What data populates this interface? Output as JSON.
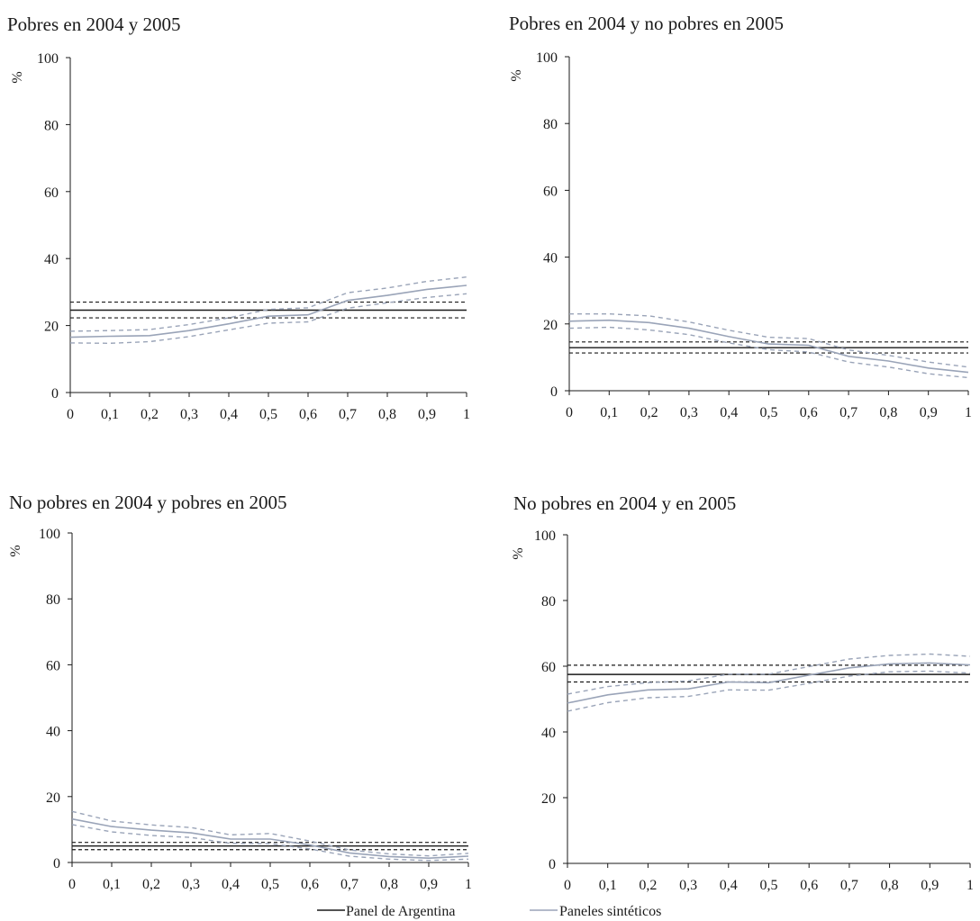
{
  "colors": {
    "panel_argentina": "#1a1a1a",
    "paneles_sinteticos": "#9aa4b8",
    "axis": "#1a1a1a"
  },
  "legend": {
    "panel_argentina": "Panel de Argentina",
    "paneles_sinteticos": "Paneles sintéticos"
  },
  "chart_data": [
    {
      "type": "line",
      "title": "Pobres en 2004 y 2005",
      "ylabel": "%",
      "ylim": [
        0,
        100
      ],
      "yticks": [
        "0",
        "20",
        "40",
        "60",
        "80",
        "100"
      ],
      "xticks": [
        "0",
        "0,1",
        "0,2",
        "0,3",
        "0,4",
        "0,5",
        "0,6",
        "0,7",
        "0,8",
        "0,9",
        "1"
      ],
      "x": [
        0,
        0.1,
        0.2,
        0.3,
        0.4,
        0.5,
        0.6,
        0.7,
        0.8,
        0.9,
        1
      ],
      "panel_argentina": {
        "value": 24.6,
        "lower": 22.3,
        "upper": 27.0
      },
      "series": [
        {
          "values": [
            16.5,
            16.8,
            17.0,
            18.5,
            20.5,
            22.8,
            23.2,
            27.5,
            29.0,
            30.8,
            32.0
          ]
        },
        {
          "values": [
            18.3,
            18.5,
            18.8,
            20.3,
            22.3,
            24.8,
            25.3,
            29.8,
            31.2,
            33.2,
            34.5
          ]
        },
        {
          "values": [
            14.8,
            14.7,
            15.2,
            16.7,
            18.7,
            20.7,
            21.1,
            25.2,
            26.8,
            28.4,
            29.5
          ]
        }
      ]
    },
    {
      "type": "line",
      "title": "Pobres en 2004 y no pobres en 2005",
      "ylabel": "%",
      "ylim": [
        0,
        100
      ],
      "yticks": [
        "0",
        "20",
        "40",
        "60",
        "80",
        "100"
      ],
      "xticks": [
        "0",
        "0,1",
        "0,2",
        "0,3",
        "0,4",
        "0,5",
        "0,6",
        "0,7",
        "0,8",
        "0,9",
        "1"
      ],
      "x": [
        0,
        0.1,
        0.2,
        0.3,
        0.4,
        0.5,
        0.6,
        0.7,
        0.8,
        0.9,
        1
      ],
      "panel_argentina": {
        "value": 12.9,
        "lower": 11.3,
        "upper": 14.6
      },
      "series": [
        {
          "values": [
            20.8,
            21.1,
            20.4,
            18.7,
            16.2,
            14.0,
            13.6,
            10.3,
            8.9,
            6.8,
            5.5
          ]
        },
        {
          "values": [
            23.0,
            23.0,
            22.4,
            20.6,
            18.1,
            16.0,
            15.6,
            12.2,
            10.6,
            8.6,
            7.1
          ]
        },
        {
          "values": [
            18.7,
            19.0,
            18.2,
            16.8,
            14.3,
            12.3,
            11.6,
            8.6,
            7.1,
            5.1,
            3.9
          ]
        }
      ]
    },
    {
      "type": "line",
      "title": "No pobres en 2004 y pobres en 2005",
      "ylabel": "%",
      "ylim": [
        0,
        100
      ],
      "yticks": [
        "0",
        "20",
        "40",
        "60",
        "80",
        "100"
      ],
      "xticks": [
        "0",
        "0,1",
        "0,2",
        "0,3",
        "0,4",
        "0,5",
        "0,6",
        "0,7",
        "0,8",
        "0,9",
        "1"
      ],
      "x": [
        0,
        0.1,
        0.2,
        0.3,
        0.4,
        0.5,
        0.6,
        0.7,
        0.8,
        0.9,
        1
      ],
      "panel_argentina": {
        "value": 5.0,
        "lower": 3.9,
        "upper": 6.1
      },
      "series": [
        {
          "values": [
            13.2,
            10.9,
            9.8,
            9.0,
            7.1,
            7.1,
            5.3,
            2.9,
            1.8,
            1.3,
            1.9
          ]
        },
        {
          "values": [
            15.5,
            12.6,
            11.4,
            10.6,
            8.4,
            8.8,
            6.5,
            3.8,
            2.6,
            2.0,
            2.8
          ]
        },
        {
          "values": [
            11.5,
            9.3,
            8.2,
            7.6,
            5.8,
            5.7,
            4.1,
            1.9,
            1.0,
            0.6,
            1.0
          ]
        }
      ]
    },
    {
      "type": "line",
      "title": "No pobres en 2004 y en 2005",
      "ylabel": "%",
      "ylim": [
        0,
        100
      ],
      "yticks": [
        "0",
        "20",
        "40",
        "60",
        "80",
        "100"
      ],
      "xticks": [
        "0",
        "0,1",
        "0,2",
        "0,3",
        "0,4",
        "0,5",
        "0,6",
        "0,7",
        "0,8",
        "0,9",
        "1"
      ],
      "x": [
        0,
        0.1,
        0.2,
        0.3,
        0.4,
        0.5,
        0.6,
        0.7,
        0.8,
        0.9,
        1
      ],
      "panel_argentina": {
        "value": 57.5,
        "lower": 55.2,
        "upper": 60.3
      },
      "series": [
        {
          "values": [
            48.8,
            51.3,
            52.8,
            53.1,
            55.2,
            55.0,
            57.3,
            59.5,
            60.7,
            61.0,
            60.4
          ]
        },
        {
          "values": [
            51.5,
            53.8,
            55.0,
            55.5,
            57.6,
            57.6,
            59.9,
            62.2,
            63.3,
            63.7,
            63.0
          ]
        },
        {
          "values": [
            46.3,
            48.9,
            50.4,
            50.8,
            52.8,
            52.7,
            54.8,
            57.0,
            58.3,
            58.5,
            57.9
          ]
        }
      ]
    }
  ]
}
